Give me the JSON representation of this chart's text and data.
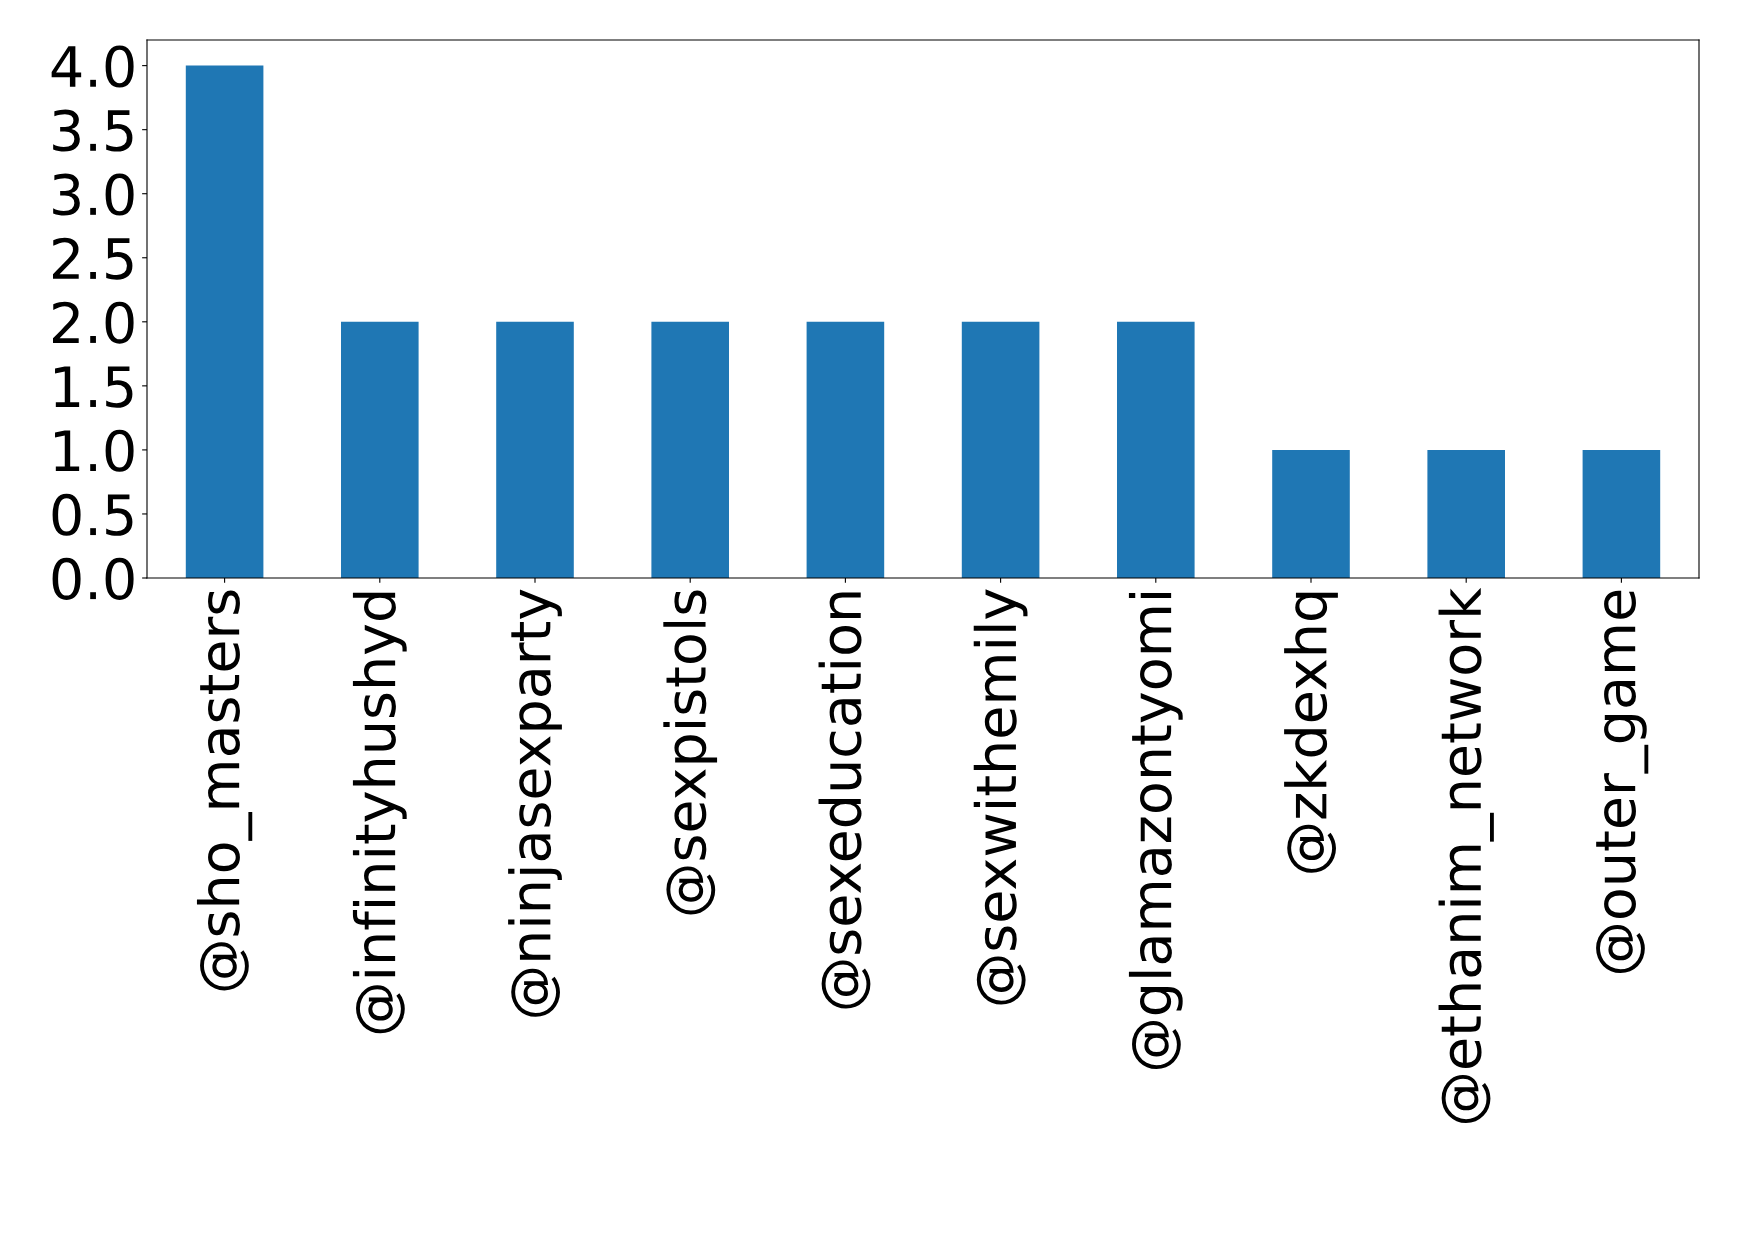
{
  "chart_data": {
    "type": "bar",
    "categories": [
      "@sho_masters",
      "@infinityhushyd",
      "@ninjasexparty",
      "@sexpistols",
      "@sexeducation",
      "@sexwithemily",
      "@glamazontyomi",
      "@zkdexhq",
      "@ethanim_network",
      "@outer_game"
    ],
    "values": [
      4,
      2,
      2,
      2,
      2,
      2,
      2,
      1,
      1,
      1
    ],
    "color": "#1f77b4",
    "ylim": [
      0,
      4.2
    ],
    "yticks": [
      {
        "value": 0,
        "label": "0.0"
      },
      {
        "value": 0.5,
        "label": "0.5"
      },
      {
        "value": 1,
        "label": "1.0"
      },
      {
        "value": 1.5,
        "label": "1.5"
      },
      {
        "value": 2,
        "label": "2.0"
      },
      {
        "value": 2.5,
        "label": "2.5"
      },
      {
        "value": 3,
        "label": "3.0"
      },
      {
        "value": 3.5,
        "label": "3.5"
      },
      {
        "value": 4,
        "label": "4.0"
      }
    ],
    "grid": false,
    "legend": false
  }
}
